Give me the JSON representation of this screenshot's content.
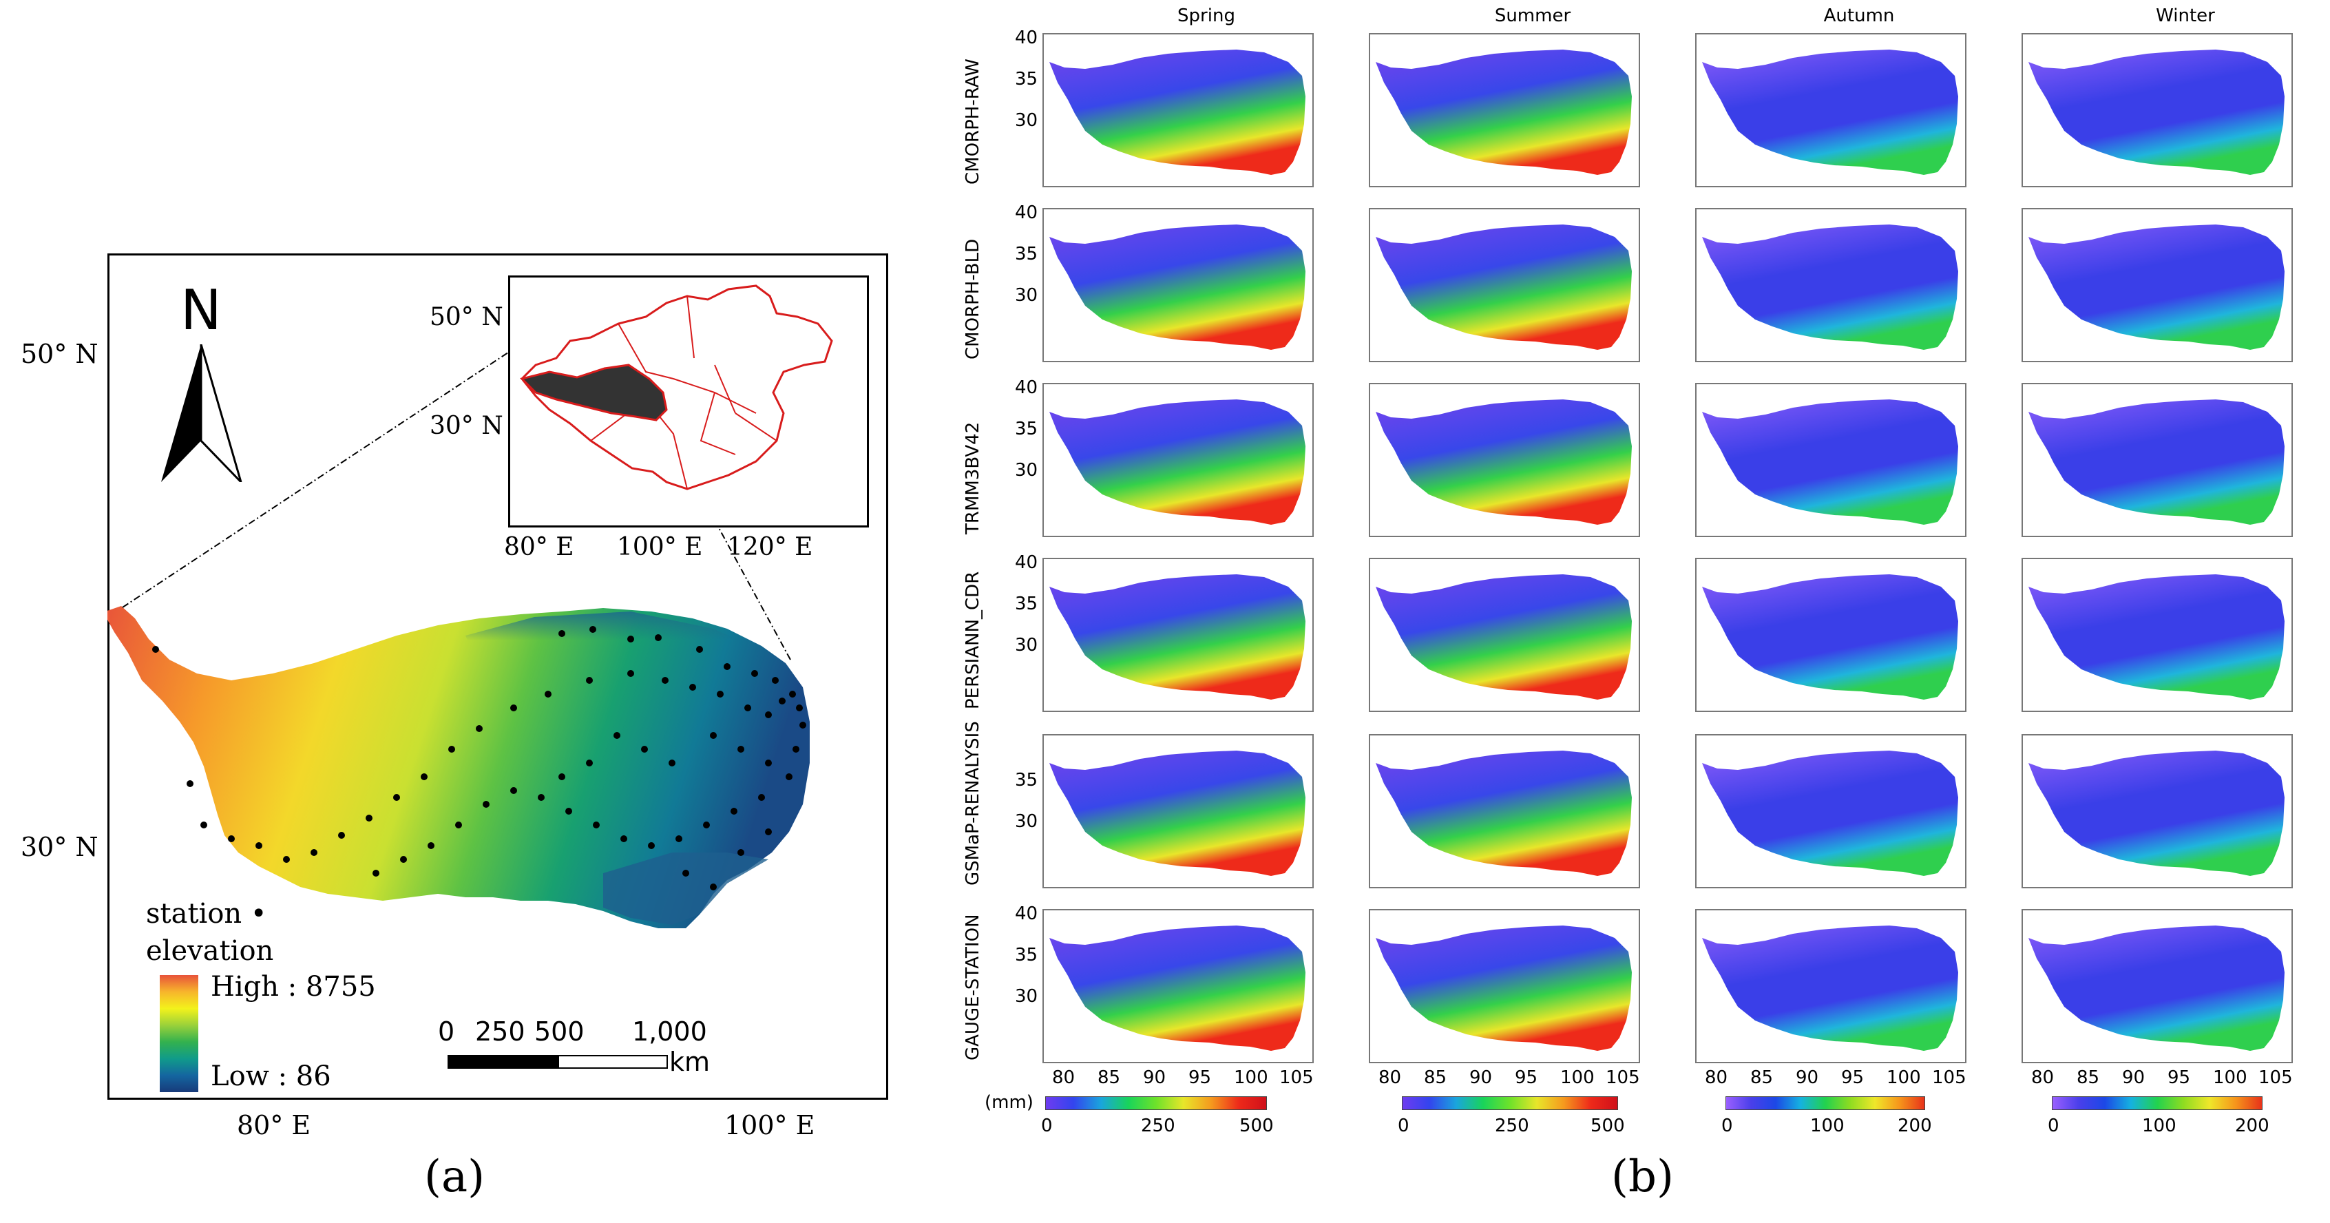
{
  "panel_a": {
    "caption": "(a)",
    "north_label": "N",
    "lat_labels": [
      "50° N",
      "30° N"
    ],
    "lon_labels": [
      "80° E",
      "100° E"
    ],
    "inset": {
      "lat_labels": [
        "50° N",
        "30° N"
      ],
      "lon_labels": [
        "80° E",
        "100° E",
        "120° E"
      ]
    },
    "legend": {
      "station_label": "station",
      "station_symbol": "•",
      "elevation_label": "elevation",
      "high_label": "High : 8755",
      "low_label": "Low : 86"
    },
    "scale": {
      "ticks": [
        "0",
        "250",
        "500",
        "1,000"
      ],
      "unit": "km"
    },
    "colors": {
      "elev_high": "#e8533a",
      "elev_mid": "#f3f21b",
      "elev_low": "#173a7a",
      "china_outline": "#d81c1c",
      "plateau_fill": "#333333"
    }
  },
  "panel_b": {
    "caption": "(b)",
    "seasons": [
      "Spring",
      "Summer",
      "Autumn",
      "Winter"
    ],
    "products": [
      "CMORPH-RAW",
      "CMORPH-BLD",
      "TRMM3BV42",
      "PERSIANN_CDR",
      "GSMaP-RENALYSIS",
      "GAUGE-STATION"
    ],
    "y_ticks": [
      "40",
      "35",
      "30"
    ],
    "x_ticks": [
      "80",
      "85",
      "90",
      "95",
      "100",
      "105"
    ],
    "unit_label": "(mm)",
    "colorbars": [
      {
        "ticks": [
          "0",
          "250",
          "500"
        ]
      },
      {
        "ticks": [
          "0",
          "250",
          "500"
        ]
      },
      {
        "ticks": [
          "0",
          "100",
          "200"
        ]
      },
      {
        "ticks": [
          "0",
          "100",
          "200"
        ]
      }
    ],
    "colors": {
      "low": "#6e3cf0",
      "mid_low": "#1c48e6",
      "mid": "#22d24e",
      "mid_high": "#efe72a",
      "high": "#e8321a"
    }
  }
}
